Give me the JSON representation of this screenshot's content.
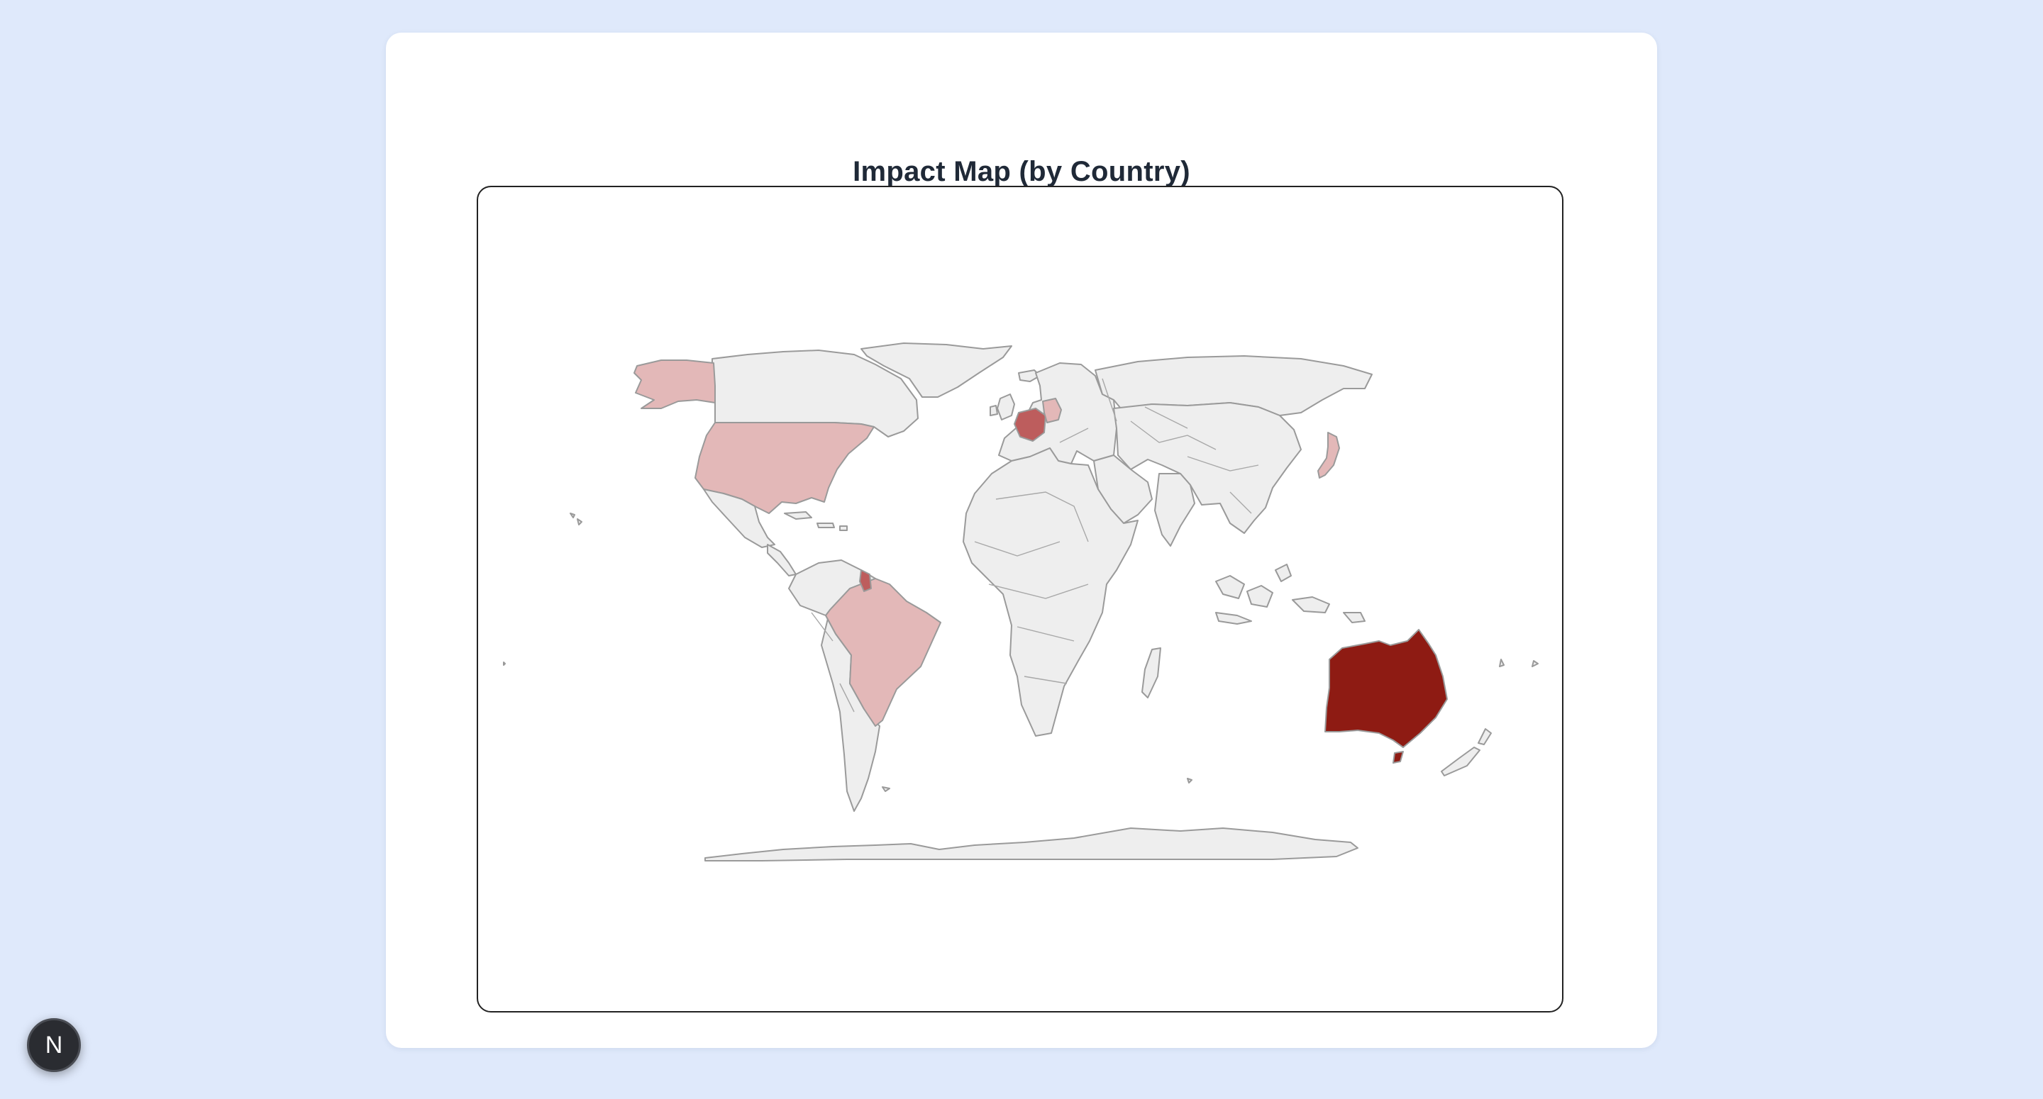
{
  "page": {
    "title": "Impact Map (by Country)"
  },
  "map": {
    "type": "choropleth",
    "projection": "robinson",
    "base_color": "#eeeeee",
    "border_color": "#9a9a9a",
    "scale_colors": [
      "#e3b8b8",
      "#bd5d5d",
      "#8e1b13"
    ],
    "highlighted_countries": [
      {
        "country": "Australia",
        "intensity": "high",
        "color": "#8e1b13"
      },
      {
        "country": "France",
        "intensity": "medium",
        "color": "#bd5d5d"
      },
      {
        "country": "French Guiana",
        "intensity": "medium",
        "color": "#bd5d5d"
      },
      {
        "country": "United States",
        "intensity": "low",
        "color": "#e3b8b8"
      },
      {
        "country": "Brazil",
        "intensity": "low",
        "color": "#e3b8b8"
      },
      {
        "country": "Germany",
        "intensity": "low",
        "color": "#e3b8b8"
      },
      {
        "country": "Japan",
        "intensity": "low",
        "color": "#e3b8b8"
      }
    ]
  },
  "badge": {
    "label": "N",
    "icon": "nextjs-logo-icon"
  }
}
